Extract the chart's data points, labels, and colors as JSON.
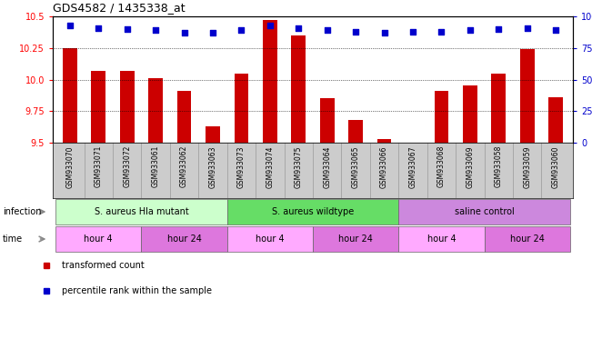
{
  "title": "GDS4582 / 1435338_at",
  "samples": [
    "GSM933070",
    "GSM933071",
    "GSM933072",
    "GSM933061",
    "GSM933062",
    "GSM933063",
    "GSM933073",
    "GSM933074",
    "GSM933075",
    "GSM933064",
    "GSM933065",
    "GSM933066",
    "GSM933067",
    "GSM933068",
    "GSM933069",
    "GSM933058",
    "GSM933059",
    "GSM933060"
  ],
  "transformed_count": [
    10.25,
    10.07,
    10.07,
    10.01,
    9.91,
    9.63,
    10.05,
    10.47,
    10.35,
    9.85,
    9.68,
    9.53,
    9.49,
    9.91,
    9.95,
    10.05,
    10.24,
    9.86
  ],
  "percentile_rank": [
    93,
    91,
    90,
    89,
    87,
    87,
    89,
    93,
    91,
    89,
    88,
    87,
    88,
    88,
    89,
    90,
    91,
    89
  ],
  "ylim_left": [
    9.5,
    10.5
  ],
  "ylim_right": [
    0,
    100
  ],
  "yticks_left": [
    9.5,
    9.75,
    10.0,
    10.25,
    10.5
  ],
  "yticks_right": [
    0,
    25,
    50,
    75,
    100
  ],
  "bar_color": "#cc0000",
  "dot_color": "#0000cc",
  "infection_groups": [
    {
      "label": "S. aureus Hla mutant",
      "start": 0,
      "end": 6,
      "color": "#ccffcc"
    },
    {
      "label": "S. aureus wildtype",
      "start": 6,
      "end": 12,
      "color": "#66dd66"
    },
    {
      "label": "saline control",
      "start": 12,
      "end": 18,
      "color": "#cc88dd"
    }
  ],
  "time_groups": [
    {
      "label": "hour 4",
      "start": 0,
      "end": 3,
      "color": "#ffaaff"
    },
    {
      "label": "hour 24",
      "start": 3,
      "end": 6,
      "color": "#dd77dd"
    },
    {
      "label": "hour 4",
      "start": 6,
      "end": 9,
      "color": "#ffaaff"
    },
    {
      "label": "hour 24",
      "start": 9,
      "end": 12,
      "color": "#dd77dd"
    },
    {
      "label": "hour 4",
      "start": 12,
      "end": 15,
      "color": "#ffaaff"
    },
    {
      "label": "hour 24",
      "start": 15,
      "end": 18,
      "color": "#dd77dd"
    }
  ],
  "legend_items": [
    {
      "label": "transformed count",
      "color": "#cc0000"
    },
    {
      "label": "percentile rank within the sample",
      "color": "#0000cc"
    }
  ],
  "plot_bg_color": "#ffffff",
  "xlabel_bg_color": "#cccccc",
  "infection_label": "infection",
  "time_label": "time"
}
